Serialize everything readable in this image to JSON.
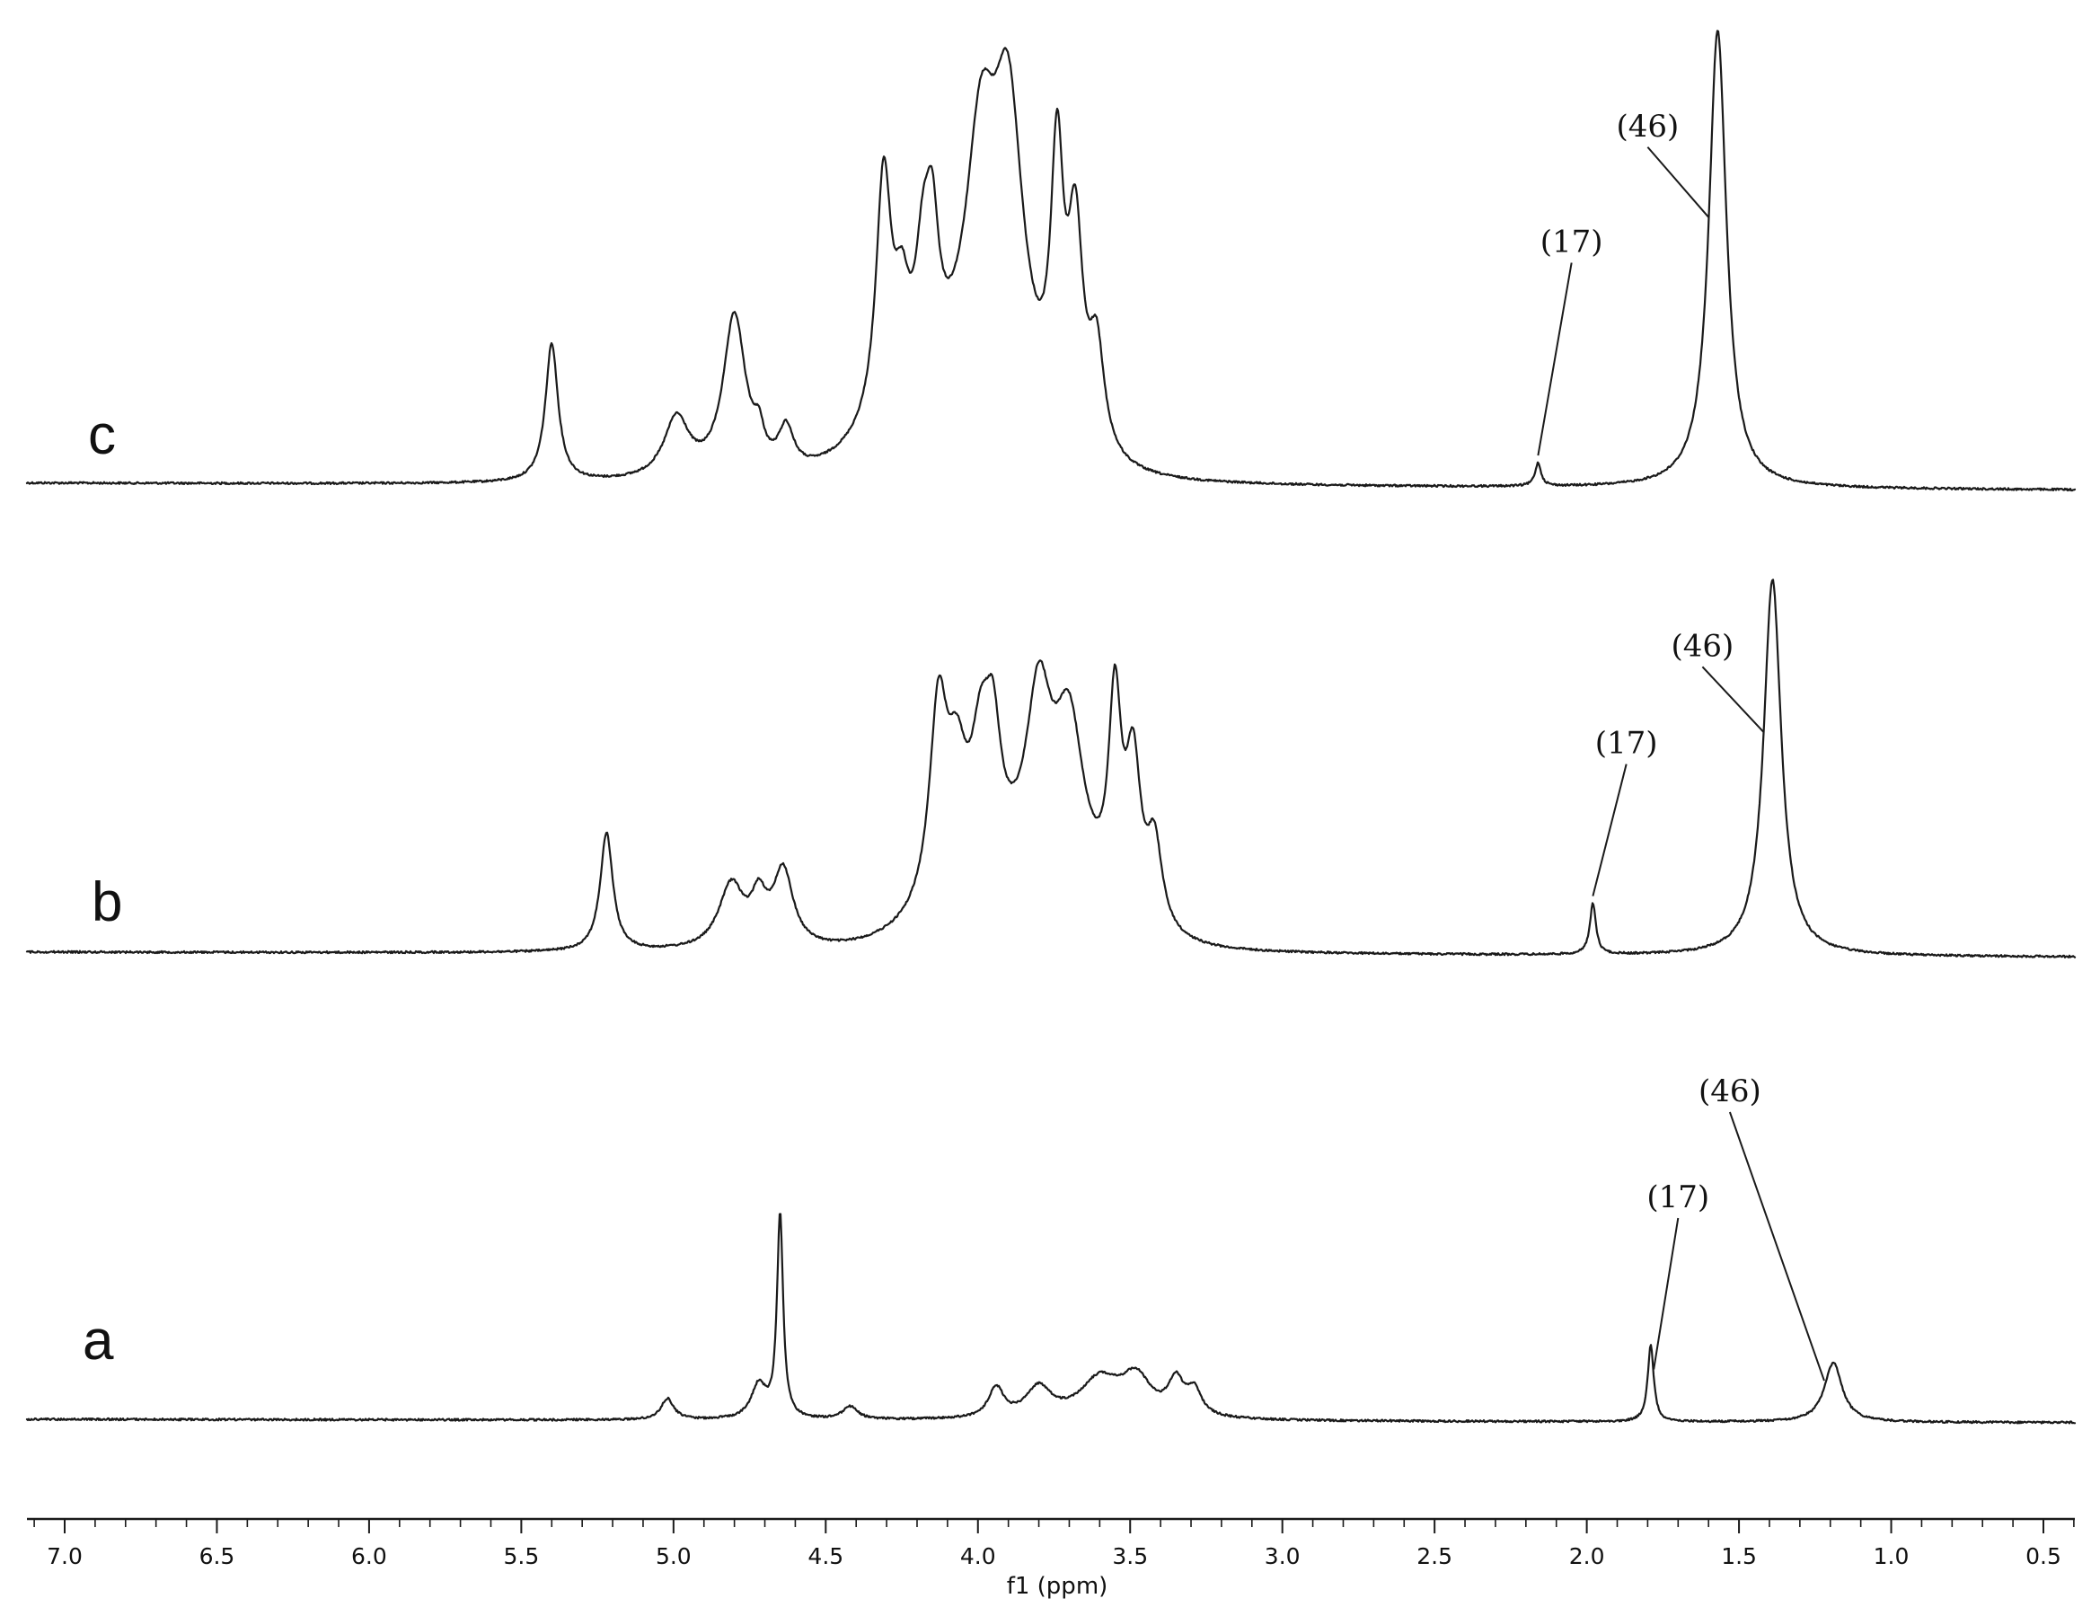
{
  "chart_data": {
    "type": "line",
    "title": "",
    "xlabel": "f1 (ppm)",
    "ylabel": "",
    "xlim": [
      7.13,
      0.39
    ],
    "x_reversed": true,
    "grid": false,
    "x_ticks": [
      "7.0",
      "6.5",
      "6.0",
      "5.5",
      "5.0",
      "4.5",
      "4.0",
      "3.5",
      "3.0",
      "2.5",
      "2.0",
      "1.5",
      "1.0",
      "0.5"
    ],
    "series": [
      {
        "name": "c",
        "baseline": [
          [
            7.13,
            0.0
          ],
          [
            0.39,
            -0.015
          ]
        ],
        "peaks": [
          [
            5.4,
            0.3,
            0.025
          ],
          [
            4.99,
            0.13,
            0.05
          ],
          [
            4.8,
            0.35,
            0.045
          ],
          [
            4.72,
            0.06,
            0.02
          ],
          [
            4.63,
            0.09,
            0.03
          ],
          [
            4.31,
            0.52,
            0.03
          ],
          [
            4.25,
            0.18,
            0.03
          ],
          [
            4.18,
            0.24,
            0.03
          ],
          [
            4.15,
            0.26,
            0.025
          ],
          [
            3.99,
            0.5,
            0.06
          ],
          [
            3.9,
            0.62,
            0.06
          ],
          [
            3.74,
            0.56,
            0.025
          ],
          [
            3.68,
            0.44,
            0.03
          ],
          [
            3.61,
            0.22,
            0.03
          ],
          [
            2.16,
            0.05,
            0.012
          ],
          [
            1.57,
            0.99,
            0.035
          ]
        ],
        "broad": [
          [
            4.08,
            0.18,
            0.3
          ]
        ],
        "annotations": [
          {
            "text": "(17)",
            "x": 2.16,
            "label_x": 2.05,
            "label_level": 0.5
          },
          {
            "text": "(46)",
            "x": 1.6,
            "label_x": 1.8,
            "label_level": 0.75
          }
        ]
      },
      {
        "name": "b",
        "baseline": [
          [
            7.13,
            0.0
          ],
          [
            0.39,
            -0.012
          ]
        ],
        "peaks": [
          [
            5.22,
            0.28,
            0.025
          ],
          [
            4.81,
            0.15,
            0.05
          ],
          [
            4.72,
            0.1,
            0.03
          ],
          [
            4.64,
            0.18,
            0.04
          ],
          [
            4.13,
            0.45,
            0.035
          ],
          [
            4.07,
            0.25,
            0.04
          ],
          [
            3.99,
            0.28,
            0.04
          ],
          [
            3.95,
            0.25,
            0.03
          ],
          [
            3.8,
            0.4,
            0.05
          ],
          [
            3.7,
            0.39,
            0.06
          ],
          [
            3.55,
            0.48,
            0.025
          ],
          [
            3.49,
            0.36,
            0.03
          ],
          [
            3.42,
            0.2,
            0.03
          ],
          [
            1.98,
            0.12,
            0.012
          ],
          [
            1.39,
            0.89,
            0.035
          ]
        ],
        "broad": [
          [
            3.88,
            0.16,
            0.3
          ]
        ],
        "annotations": [
          {
            "text": "(17)",
            "x": 1.98,
            "label_x": 1.87,
            "label_level": 0.47
          },
          {
            "text": "(46)",
            "x": 1.42,
            "label_x": 1.62,
            "label_level": 0.7
          }
        ]
      },
      {
        "name": "a",
        "baseline": [
          [
            7.13,
            0.0
          ],
          [
            0.39,
            -0.008
          ]
        ],
        "peaks": [
          [
            5.02,
            0.05,
            0.025
          ],
          [
            4.72,
            0.08,
            0.03
          ],
          [
            4.65,
            0.48,
            0.012
          ],
          [
            4.42,
            0.03,
            0.03
          ],
          [
            3.94,
            0.07,
            0.03
          ],
          [
            3.8,
            0.07,
            0.05
          ],
          [
            3.6,
            0.09,
            0.08
          ],
          [
            3.48,
            0.09,
            0.06
          ],
          [
            3.35,
            0.08,
            0.03
          ],
          [
            3.29,
            0.06,
            0.03
          ],
          [
            1.79,
            0.18,
            0.012
          ],
          [
            1.19,
            0.14,
            0.035
          ]
        ],
        "broad": [],
        "annotations": [
          {
            "text": "(17)",
            "x": 1.78,
            "label_x": 1.7,
            "label_level": 0.5
          },
          {
            "text": "(46)",
            "x": 1.22,
            "label_x": 1.53,
            "label_level": 0.75
          }
        ]
      }
    ]
  }
}
